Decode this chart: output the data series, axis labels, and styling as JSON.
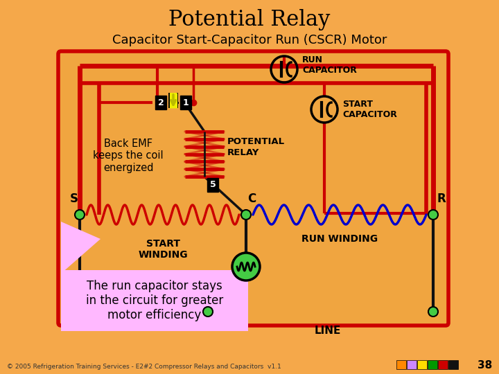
{
  "title": "Potential Relay",
  "subtitle": "Capacitor Start-Capacitor Run (CSCR) Motor",
  "bg_color": "#F5A84A",
  "circuit_fill": "#F0A040",
  "red_wire": "#CC0000",
  "blue_wire": "#0000CC",
  "dark_wire": "#111111",
  "green_dot": "#44CC44",
  "relay_coil_color": "#DD0000",
  "start_winding_color": "#CC0000",
  "run_winding_color": "#0000EE",
  "caption_box_color": "#FFB8FF",
  "pink_tri": "#FFB8FF",
  "footer_text": "© 2005 Refrigeration Training Services - E2#2 Compressor Relays and Capacitors  v1.1",
  "page_number": "38",
  "label_S": "S",
  "label_C": "C",
  "label_R": "R",
  "label_2": "2",
  "label_1": "1",
  "label_5": "5",
  "label_run_cap": "RUN\nCAPACITOR",
  "label_start_cap": "START\nCAPACITOR",
  "label_potential_relay": "POTENTIAL\nRELAY",
  "label_start_winding": "START\nWINDING",
  "label_run_winding": "RUN WINDING",
  "label_back_emf": "Back EMF\nkeeps the coil\nenergized",
  "label_line": "LINE",
  "caption": "The run capacitor stays\nin the circuit for greater\nmotor efficiency",
  "icon_colors": [
    "#FF8800",
    "#CC88FF",
    "#FFDD00",
    "#009900",
    "#CC0000",
    "#111111"
  ]
}
